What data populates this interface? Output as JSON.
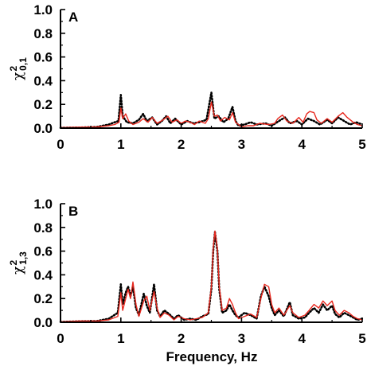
{
  "chart_data": [
    {
      "type": "line",
      "panel_label": "A",
      "ylabel": {
        "symbol": "χ",
        "superscript": "2",
        "subscript": "0,1"
      },
      "xlim": [
        0,
        5
      ],
      "ylim": [
        0,
        1.0
      ],
      "xticks": [
        "0",
        "1",
        "2",
        "3",
        "4",
        "5"
      ],
      "yticks": [
        "0.0",
        "0.2",
        "0.4",
        "0.6",
        "0.8",
        "1.0"
      ],
      "grid": false,
      "series": [
        {
          "style": "solid",
          "color": "#e8281e",
          "points": [
            [
              0,
              0.005
            ],
            [
              0.3,
              0.008
            ],
            [
              0.6,
              0.01
            ],
            [
              0.8,
              0.02
            ],
            [
              0.9,
              0.03
            ],
            [
              0.97,
              0.05
            ],
            [
              1.0,
              0.17
            ],
            [
              1.03,
              0.08
            ],
            [
              1.08,
              0.12
            ],
            [
              1.13,
              0.06
            ],
            [
              1.2,
              0.03
            ],
            [
              1.3,
              0.05
            ],
            [
              1.37,
              0.08
            ],
            [
              1.45,
              0.05
            ],
            [
              1.52,
              0.09
            ],
            [
              1.6,
              0.04
            ],
            [
              1.7,
              0.07
            ],
            [
              1.78,
              0.1
            ],
            [
              1.85,
              0.05
            ],
            [
              1.93,
              0.07
            ],
            [
              2.0,
              0.04
            ],
            [
              2.07,
              0.06
            ],
            [
              2.15,
              0.05
            ],
            [
              2.22,
              0.03
            ],
            [
              2.3,
              0.06
            ],
            [
              2.4,
              0.04
            ],
            [
              2.45,
              0.08
            ],
            [
              2.5,
              0.22
            ],
            [
              2.55,
              0.1
            ],
            [
              2.6,
              0.11
            ],
            [
              2.65,
              0.06
            ],
            [
              2.72,
              0.09
            ],
            [
              2.8,
              0.07
            ],
            [
              2.85,
              0.13
            ],
            [
              2.9,
              0.05
            ],
            [
              2.95,
              0.03
            ],
            [
              3.0,
              0.01
            ],
            [
              3.1,
              0.02
            ],
            [
              3.2,
              0.02
            ],
            [
              3.3,
              0.04
            ],
            [
              3.45,
              0.03
            ],
            [
              3.55,
              0.04
            ],
            [
              3.6,
              0.08
            ],
            [
              3.68,
              0.11
            ],
            [
              3.75,
              0.06
            ],
            [
              3.85,
              0.04
            ],
            [
              3.95,
              0.09
            ],
            [
              4.02,
              0.05
            ],
            [
              4.08,
              0.12
            ],
            [
              4.13,
              0.14
            ],
            [
              4.2,
              0.13
            ],
            [
              4.25,
              0.07
            ],
            [
              4.32,
              0.04
            ],
            [
              4.42,
              0.08
            ],
            [
              4.5,
              0.05
            ],
            [
              4.6,
              0.1
            ],
            [
              4.68,
              0.13
            ],
            [
              4.75,
              0.09
            ],
            [
              4.85,
              0.05
            ],
            [
              4.92,
              0.03
            ],
            [
              5.0,
              0.02
            ]
          ]
        },
        {
          "style": "dotted",
          "color": "#000000",
          "points": [
            [
              0,
              0.003
            ],
            [
              0.3,
              0.005
            ],
            [
              0.6,
              0.01
            ],
            [
              0.8,
              0.03
            ],
            [
              0.9,
              0.05
            ],
            [
              0.96,
              0.06
            ],
            [
              1.0,
              0.28
            ],
            [
              1.03,
              0.1
            ],
            [
              1.1,
              0.05
            ],
            [
              1.2,
              0.04
            ],
            [
              1.3,
              0.07
            ],
            [
              1.37,
              0.12
            ],
            [
              1.43,
              0.06
            ],
            [
              1.52,
              0.09
            ],
            [
              1.6,
              0.03
            ],
            [
              1.68,
              0.06
            ],
            [
              1.75,
              0.1
            ],
            [
              1.82,
              0.04
            ],
            [
              1.9,
              0.08
            ],
            [
              2.0,
              0.03
            ],
            [
              2.1,
              0.06
            ],
            [
              2.2,
              0.04
            ],
            [
              2.3,
              0.05
            ],
            [
              2.42,
              0.07
            ],
            [
              2.5,
              0.3
            ],
            [
              2.55,
              0.08
            ],
            [
              2.62,
              0.1
            ],
            [
              2.7,
              0.05
            ],
            [
              2.78,
              0.08
            ],
            [
              2.85,
              0.18
            ],
            [
              2.9,
              0.06
            ],
            [
              2.95,
              0.02
            ],
            [
              3.05,
              0.03
            ],
            [
              3.15,
              0.05
            ],
            [
              3.25,
              0.03
            ],
            [
              3.4,
              0.04
            ],
            [
              3.5,
              0.02
            ],
            [
              3.65,
              0.07
            ],
            [
              3.72,
              0.09
            ],
            [
              3.8,
              0.04
            ],
            [
              3.92,
              0.06
            ],
            [
              4.0,
              0.03
            ],
            [
              4.1,
              0.08
            ],
            [
              4.2,
              0.06
            ],
            [
              4.3,
              0.03
            ],
            [
              4.42,
              0.07
            ],
            [
              4.5,
              0.04
            ],
            [
              4.6,
              0.09
            ],
            [
              4.7,
              0.06
            ],
            [
              4.8,
              0.03
            ],
            [
              4.9,
              0.05
            ],
            [
              5.0,
              0.03
            ]
          ]
        }
      ]
    },
    {
      "type": "line",
      "panel_label": "B",
      "ylabel": {
        "symbol": "χ",
        "superscript": "2",
        "subscript": "1,3"
      },
      "xlim": [
        0,
        5
      ],
      "ylim": [
        0,
        1.0
      ],
      "xticks": [
        "0",
        "1",
        "2",
        "3",
        "4",
        "5"
      ],
      "yticks": [
        "0.0",
        "0.2",
        "0.4",
        "0.6",
        "0.8",
        "1.0"
      ],
      "xlabel": "Frequency, Hz",
      "grid": false,
      "series": [
        {
          "style": "solid",
          "color": "#e8281e",
          "points": [
            [
              0,
              0.005
            ],
            [
              0.3,
              0.01
            ],
            [
              0.6,
              0.01
            ],
            [
              0.8,
              0.02
            ],
            [
              0.95,
              0.05
            ],
            [
              1.0,
              0.25
            ],
            [
              1.03,
              0.1
            ],
            [
              1.08,
              0.2
            ],
            [
              1.12,
              0.28
            ],
            [
              1.16,
              0.2
            ],
            [
              1.2,
              0.34
            ],
            [
              1.25,
              0.15
            ],
            [
              1.3,
              0.05
            ],
            [
              1.38,
              0.18
            ],
            [
              1.43,
              0.22
            ],
            [
              1.48,
              0.1
            ],
            [
              1.55,
              0.26
            ],
            [
              1.6,
              0.12
            ],
            [
              1.65,
              0.04
            ],
            [
              1.72,
              0.08
            ],
            [
              1.8,
              0.06
            ],
            [
              1.88,
              0.02
            ],
            [
              1.95,
              0.05
            ],
            [
              2.05,
              0.03
            ],
            [
              2.15,
              0.02
            ],
            [
              2.25,
              0.03
            ],
            [
              2.35,
              0.04
            ],
            [
              2.45,
              0.08
            ],
            [
              2.5,
              0.3
            ],
            [
              2.53,
              0.62
            ],
            [
              2.56,
              0.77
            ],
            [
              2.6,
              0.62
            ],
            [
              2.63,
              0.3
            ],
            [
              2.68,
              0.1
            ],
            [
              2.75,
              0.12
            ],
            [
              2.8,
              0.2
            ],
            [
              2.85,
              0.15
            ],
            [
              2.9,
              0.08
            ],
            [
              2.95,
              0.03
            ],
            [
              3.05,
              0.05
            ],
            [
              3.15,
              0.07
            ],
            [
              3.25,
              0.04
            ],
            [
              3.32,
              0.2
            ],
            [
              3.38,
              0.32
            ],
            [
              3.45,
              0.3
            ],
            [
              3.5,
              0.15
            ],
            [
              3.55,
              0.08
            ],
            [
              3.62,
              0.12
            ],
            [
              3.7,
              0.06
            ],
            [
              3.8,
              0.14
            ],
            [
              3.85,
              0.08
            ],
            [
              3.95,
              0.04
            ],
            [
              4.05,
              0.06
            ],
            [
              4.12,
              0.1
            ],
            [
              4.2,
              0.15
            ],
            [
              4.28,
              0.12
            ],
            [
              4.35,
              0.18
            ],
            [
              4.42,
              0.14
            ],
            [
              4.5,
              0.18
            ],
            [
              4.55,
              0.1
            ],
            [
              4.62,
              0.06
            ],
            [
              4.7,
              0.1
            ],
            [
              4.78,
              0.08
            ],
            [
              4.85,
              0.05
            ],
            [
              4.92,
              0.03
            ],
            [
              5.0,
              0.02
            ]
          ]
        },
        {
          "style": "dotted",
          "color": "#000000",
          "points": [
            [
              0,
              0.003
            ],
            [
              0.3,
              0.008
            ],
            [
              0.6,
              0.01
            ],
            [
              0.8,
              0.03
            ],
            [
              0.95,
              0.08
            ],
            [
              1.0,
              0.32
            ],
            [
              1.03,
              0.15
            ],
            [
              1.08,
              0.25
            ],
            [
              1.12,
              0.3
            ],
            [
              1.16,
              0.22
            ],
            [
              1.2,
              0.3
            ],
            [
              1.25,
              0.12
            ],
            [
              1.3,
              0.06
            ],
            [
              1.38,
              0.24
            ],
            [
              1.43,
              0.14
            ],
            [
              1.48,
              0.08
            ],
            [
              1.55,
              0.32
            ],
            [
              1.6,
              0.1
            ],
            [
              1.65,
              0.05
            ],
            [
              1.72,
              0.1
            ],
            [
              1.8,
              0.07
            ],
            [
              1.88,
              0.03
            ],
            [
              1.95,
              0.06
            ],
            [
              2.05,
              0.02
            ],
            [
              2.15,
              0.03
            ],
            [
              2.25,
              0.02
            ],
            [
              2.35,
              0.05
            ],
            [
              2.45,
              0.07
            ],
            [
              2.5,
              0.28
            ],
            [
              2.53,
              0.6
            ],
            [
              2.56,
              0.76
            ],
            [
              2.6,
              0.6
            ],
            [
              2.63,
              0.28
            ],
            [
              2.68,
              0.08
            ],
            [
              2.75,
              0.1
            ],
            [
              2.8,
              0.15
            ],
            [
              2.85,
              0.1
            ],
            [
              2.9,
              0.06
            ],
            [
              2.95,
              0.04
            ],
            [
              3.05,
              0.08
            ],
            [
              3.15,
              0.06
            ],
            [
              3.25,
              0.03
            ],
            [
              3.32,
              0.22
            ],
            [
              3.38,
              0.3
            ],
            [
              3.45,
              0.22
            ],
            [
              3.5,
              0.12
            ],
            [
              3.55,
              0.06
            ],
            [
              3.62,
              0.1
            ],
            [
              3.7,
              0.05
            ],
            [
              3.8,
              0.17
            ],
            [
              3.85,
              0.06
            ],
            [
              3.95,
              0.03
            ],
            [
              4.05,
              0.04
            ],
            [
              4.12,
              0.08
            ],
            [
              4.2,
              0.12
            ],
            [
              4.28,
              0.08
            ],
            [
              4.35,
              0.15
            ],
            [
              4.42,
              0.1
            ],
            [
              4.5,
              0.14
            ],
            [
              4.55,
              0.07
            ],
            [
              4.62,
              0.04
            ],
            [
              4.7,
              0.08
            ],
            [
              4.78,
              0.06
            ],
            [
              4.85,
              0.04
            ],
            [
              4.92,
              0.02
            ],
            [
              5.0,
              0.03
            ]
          ]
        }
      ]
    }
  ]
}
